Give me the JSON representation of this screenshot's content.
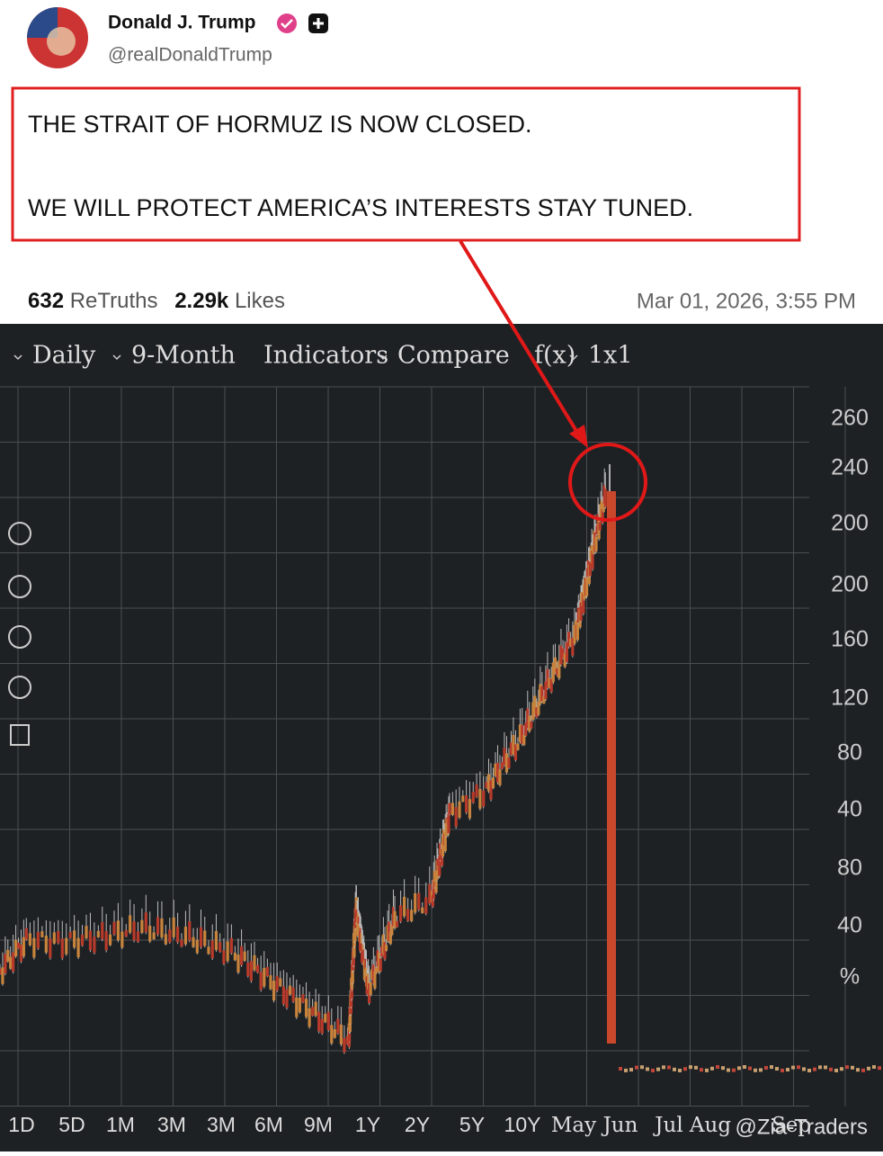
{
  "post": {
    "author": "Donald J. Trump",
    "handle": "@realDonaldTrump",
    "text": [
      "THE STRAIT OF HORMUZ IS NOW CLOSED.",
      "WE WILL PROTECT AMERICA’S INTERESTS  STAY TUNED."
    ],
    "retruths": "632",
    "retruths_label": "ReTruths",
    "likes": "2.29k",
    "likes_label": "Likes",
    "timestamp": "Mar 01, 2026, 3:55 PM"
  },
  "chart_image": {
    "toolbar": [
      "Daily",
      "9-Month",
      "Indicators",
      "Compare",
      "f(x)",
      "1x1"
    ],
    "y_labels": [
      "260",
      "240",
      "200",
      "200",
      "160",
      "120",
      "80",
      "40",
      "80",
      "40",
      "%"
    ],
    "x_labels": [
      "1D",
      "5D",
      "1M",
      "3M",
      "3M",
      "6M",
      "9M",
      "1Y",
      "2Y",
      "5Y",
      "10Y",
      "May",
      "Jun",
      "Jul",
      "Aug",
      "Sep"
    ],
    "watermark": "@Zia-Traders"
  }
}
